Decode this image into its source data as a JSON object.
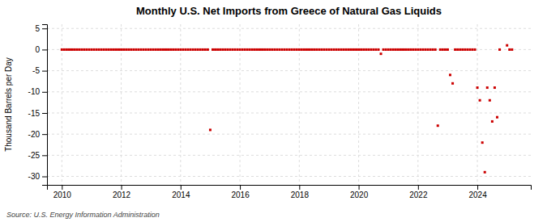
{
  "chart_data": {
    "type": "scatter",
    "title": "Monthly U.S. Net Imports from Greece of Natural Gas Liquids",
    "ylabel": "Thousand Barrels per Day",
    "annotations": [
      "Source: U.S. Energy Information Administration"
    ],
    "color": "#cc0000",
    "marker": "square",
    "grid": true,
    "xlim": [
      2009.5,
      2025.8
    ],
    "ylim": [
      -32,
      6
    ],
    "xticks": [
      2010,
      2012,
      2014,
      2016,
      2018,
      2020,
      2022,
      2024
    ],
    "yticks": [
      5,
      0,
      -5,
      -10,
      -15,
      -20,
      -25,
      -30
    ],
    "x": [
      2010.0,
      2010.083,
      2010.167,
      2010.25,
      2010.333,
      2010.417,
      2010.5,
      2010.583,
      2010.667,
      2010.75,
      2010.833,
      2010.917,
      2011.0,
      2011.083,
      2011.167,
      2011.25,
      2011.333,
      2011.417,
      2011.5,
      2011.583,
      2011.667,
      2011.75,
      2011.833,
      2011.917,
      2012.0,
      2012.083,
      2012.167,
      2012.25,
      2012.333,
      2012.417,
      2012.5,
      2012.583,
      2012.667,
      2012.75,
      2012.833,
      2012.917,
      2013.0,
      2013.083,
      2013.167,
      2013.25,
      2013.333,
      2013.417,
      2013.5,
      2013.583,
      2013.667,
      2013.75,
      2013.833,
      2013.917,
      2014.0,
      2014.083,
      2014.167,
      2014.25,
      2014.333,
      2014.417,
      2014.5,
      2014.583,
      2014.667,
      2014.75,
      2014.833,
      2014.917,
      2015.0,
      2015.083,
      2015.167,
      2015.25,
      2015.333,
      2015.417,
      2015.5,
      2015.583,
      2015.667,
      2015.75,
      2015.833,
      2015.917,
      2016.0,
      2016.083,
      2016.167,
      2016.25,
      2016.333,
      2016.417,
      2016.5,
      2016.583,
      2016.667,
      2016.75,
      2016.833,
      2016.917,
      2017.0,
      2017.083,
      2017.167,
      2017.25,
      2017.333,
      2017.417,
      2017.5,
      2017.583,
      2017.667,
      2017.75,
      2017.833,
      2017.917,
      2018.0,
      2018.083,
      2018.167,
      2018.25,
      2018.333,
      2018.417,
      2018.5,
      2018.583,
      2018.667,
      2018.75,
      2018.833,
      2018.917,
      2019.0,
      2019.083,
      2019.167,
      2019.25,
      2019.333,
      2019.417,
      2019.5,
      2019.583,
      2019.667,
      2019.75,
      2019.833,
      2019.917,
      2020.0,
      2020.083,
      2020.167,
      2020.25,
      2020.333,
      2020.417,
      2020.5,
      2020.583,
      2020.667,
      2020.75,
      2020.833,
      2020.917,
      2021.0,
      2021.083,
      2021.167,
      2021.25,
      2021.333,
      2021.417,
      2021.5,
      2021.583,
      2021.667,
      2021.75,
      2021.833,
      2021.917,
      2022.0,
      2022.083,
      2022.167,
      2022.25,
      2022.333,
      2022.417,
      2022.5,
      2022.583,
      2022.667,
      2022.75,
      2022.833,
      2022.917,
      2023.0,
      2023.083,
      2023.167,
      2023.25,
      2023.333,
      2023.417,
      2023.5,
      2023.583,
      2023.667,
      2023.75,
      2023.833,
      2023.917,
      2024.0,
      2024.083,
      2024.167,
      2024.25,
      2024.333,
      2024.417,
      2024.5,
      2024.583,
      2024.667,
      2024.75,
      2025.0,
      2025.083,
      2025.167
    ],
    "values": [
      0,
      0,
      0,
      0,
      0,
      0,
      0,
      0,
      0,
      0,
      0,
      0,
      0,
      0,
      0,
      0,
      0,
      0,
      0,
      0,
      0,
      0,
      0,
      0,
      0,
      0,
      0,
      0,
      0,
      0,
      0,
      0,
      0,
      0,
      0,
      0,
      0,
      0,
      0,
      0,
      0,
      0,
      0,
      0,
      0,
      0,
      0,
      0,
      0,
      0,
      0,
      0,
      0,
      0,
      0,
      0,
      0,
      0,
      0,
      0,
      -19,
      0,
      0,
      0,
      0,
      0,
      0,
      0,
      0,
      0,
      0,
      0,
      0,
      0,
      0,
      0,
      0,
      0,
      0,
      0,
      0,
      0,
      0,
      0,
      0,
      0,
      0,
      0,
      0,
      0,
      0,
      0,
      0,
      0,
      0,
      0,
      0,
      0,
      0,
      0,
      0,
      0,
      0,
      0,
      0,
      0,
      0,
      0,
      0,
      0,
      0,
      0,
      0,
      0,
      0,
      0,
      0,
      0,
      0,
      0,
      0,
      0,
      0,
      0,
      0,
      0,
      0,
      0,
      0,
      -1,
      0,
      0,
      0,
      0,
      0,
      0,
      0,
      0,
      0,
      0,
      0,
      0,
      0,
      0,
      0,
      0,
      0,
      0,
      0,
      0,
      0,
      0,
      -18,
      0,
      0,
      0,
      0,
      -6,
      -8,
      0,
      0,
      0,
      0,
      0,
      0,
      0,
      0,
      0,
      -9,
      -12,
      -22,
      -29,
      -9,
      -12,
      -17,
      -9,
      -16,
      0,
      1,
      0,
      0
    ]
  }
}
